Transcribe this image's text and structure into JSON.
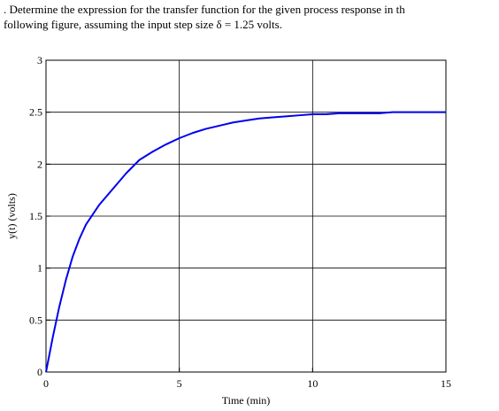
{
  "problem": {
    "line1": ". Determine the expression  for the transfer function for the given process response in th",
    "line2": "following figure, assuming  the input step size  δ = 1.25 volts."
  },
  "chart_data": {
    "type": "line",
    "xlabel": "Time (min)",
    "ylabel": "y(t) (volts)",
    "xlim": [
      0,
      15
    ],
    "ylim": [
      0,
      3
    ],
    "xticks": [
      0,
      5,
      10,
      15
    ],
    "yticks": [
      0,
      0.5,
      1,
      1.5,
      2,
      2.5,
      3
    ],
    "xtick_labels": [
      "0",
      "5",
      "10",
      "15"
    ],
    "ytick_labels": [
      "0",
      "0.5",
      "1",
      "1.5",
      "2",
      "2.5",
      "3"
    ],
    "grid": "major",
    "series": [
      {
        "color": "#0000ee",
        "x": [
          0,
          0.25,
          0.5,
          0.75,
          1,
          1.25,
          1.5,
          2,
          2.5,
          3,
          3.5,
          4,
          4.5,
          5,
          5.5,
          6,
          6.5,
          7,
          7.5,
          8,
          8.5,
          9,
          9.5,
          10,
          10.5,
          11,
          11.5,
          12,
          12.5,
          13,
          13.5,
          14,
          14.5,
          15
        ],
        "y": [
          0,
          0.33,
          0.63,
          0.89,
          1.11,
          1.28,
          1.42,
          1.61,
          1.76,
          1.91,
          2.04,
          2.12,
          2.19,
          2.25,
          2.3,
          2.34,
          2.37,
          2.4,
          2.42,
          2.44,
          2.45,
          2.46,
          2.47,
          2.48,
          2.48,
          2.49,
          2.49,
          2.49,
          2.49,
          2.5,
          2.5,
          2.5,
          2.5,
          2.5
        ]
      }
    ]
  }
}
